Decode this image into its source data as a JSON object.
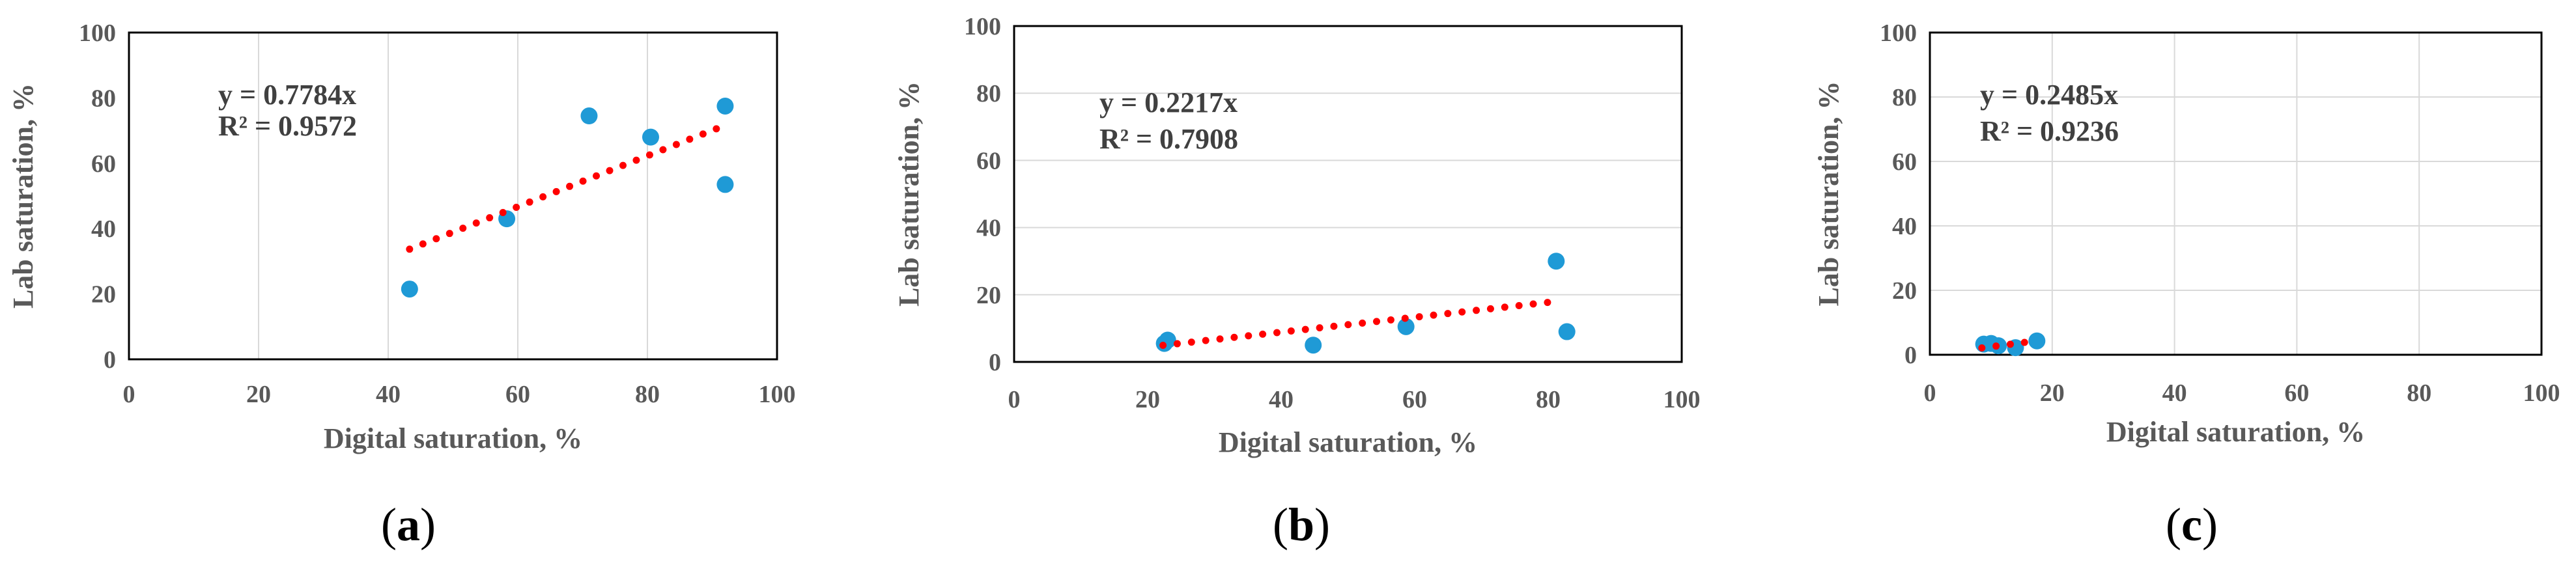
{
  "chart_data": [
    {
      "type": "scatter",
      "panel_label": "a",
      "xlabel": "Digital saturation, %",
      "ylabel": "Lab saturation, %",
      "xlim": [
        0,
        100
      ],
      "ylim": [
        0,
        100
      ],
      "xticks": [
        0,
        20,
        40,
        60,
        80,
        100
      ],
      "yticks": [
        0,
        20,
        40,
        60,
        80,
        100
      ],
      "grid": "vertical",
      "points": [
        [
          43.3,
          21.5
        ],
        [
          58.3,
          43
        ],
        [
          71,
          74.5
        ],
        [
          80.5,
          68
        ],
        [
          92,
          77.5
        ],
        [
          92,
          53.5
        ]
      ],
      "trendline": {
        "slope": 0.7784,
        "x_range": [
          43.3,
          92
        ],
        "style": "dotted"
      },
      "equation": "y = 0.7784x",
      "r2_label": "R² = 0.9572"
    },
    {
      "type": "scatter",
      "panel_label": "b",
      "xlabel": "Digital saturation, %",
      "ylabel": "Lab saturation, %",
      "xlim": [
        0,
        100
      ],
      "ylim": [
        0,
        100
      ],
      "xticks": [
        0,
        20,
        40,
        60,
        80,
        100
      ],
      "yticks": [
        0,
        20,
        40,
        60,
        80,
        100
      ],
      "grid": "horizontal",
      "points": [
        [
          22.5,
          5.5
        ],
        [
          23,
          6.5
        ],
        [
          44.8,
          5
        ],
        [
          58.7,
          10.5
        ],
        [
          81.2,
          30
        ],
        [
          82.8,
          9
        ]
      ],
      "trendline": {
        "slope": 0.2217,
        "x_range": [
          22.3,
          82
        ],
        "style": "dotted"
      },
      "equation": "y = 0.2217x",
      "r2_label": "R² = 0.7908"
    },
    {
      "type": "scatter",
      "panel_label": "c",
      "xlabel": "Digital saturation, %",
      "ylabel": "Lab saturation, %",
      "xlim": [
        0,
        100
      ],
      "ylim": [
        0,
        100
      ],
      "xticks": [
        0,
        20,
        40,
        60,
        80,
        100
      ],
      "yticks": [
        0,
        20,
        40,
        60,
        80,
        100
      ],
      "grid": "both",
      "points": [
        [
          8.8,
          3.3
        ],
        [
          10,
          3.5
        ],
        [
          11.2,
          2.8
        ],
        [
          14,
          2.2
        ],
        [
          17.5,
          4.3
        ]
      ],
      "trendline": {
        "slope": 0.2485,
        "x_range": [
          8.5,
          17.6
        ],
        "style": "dotted"
      },
      "equation": "y = 0.2485x",
      "r2_label": "R² = 0.9236"
    }
  ]
}
